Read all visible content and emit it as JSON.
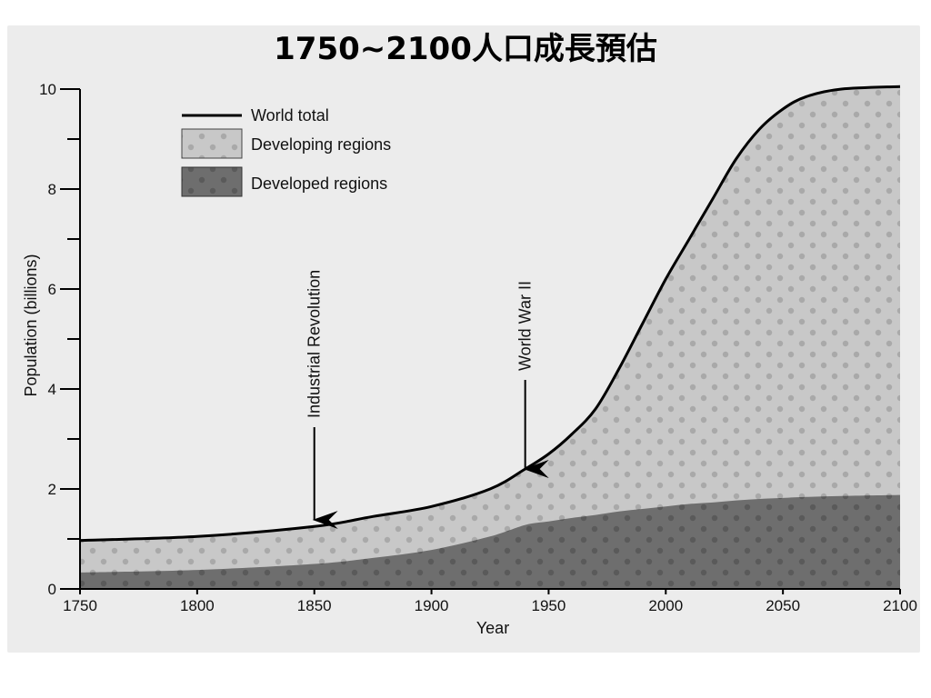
{
  "slide": {
    "title": "1750~2100人口成長預估"
  },
  "chart_data": {
    "type": "area",
    "x": [
      1750,
      1800,
      1850,
      1875,
      1900,
      1925,
      1940,
      1950,
      1960,
      1970,
      1980,
      1990,
      2000,
      2010,
      2020,
      2030,
      2040,
      2050,
      2060,
      2075,
      2100
    ],
    "series": [
      {
        "name": "World total",
        "values": [
          0.97,
          1.05,
          1.25,
          1.45,
          1.65,
          2.0,
          2.4,
          2.7,
          3.1,
          3.6,
          4.4,
          5.3,
          6.2,
          7.0,
          7.8,
          8.6,
          9.2,
          9.6,
          9.85,
          10.0,
          10.05
        ]
      },
      {
        "name": "Developing regions",
        "values": [
          0.97,
          1.05,
          1.25,
          1.45,
          1.65,
          2.0,
          2.4,
          2.7,
          3.1,
          3.6,
          4.4,
          5.3,
          6.2,
          7.0,
          7.8,
          8.6,
          9.2,
          9.6,
          9.85,
          10.0,
          10.05
        ]
      },
      {
        "name": "Developed regions",
        "values": [
          0.33,
          0.38,
          0.5,
          0.62,
          0.78,
          1.05,
          1.28,
          1.35,
          1.42,
          1.48,
          1.55,
          1.6,
          1.65,
          1.7,
          1.73,
          1.77,
          1.8,
          1.82,
          1.84,
          1.86,
          1.88
        ]
      }
    ],
    "title": "",
    "xlabel": "Year",
    "ylabel": "Population (billions)",
    "xlim": [
      1750,
      2100
    ],
    "ylim": [
      0,
      10
    ],
    "xticks": [
      "1750",
      "1800",
      "1850",
      "1900",
      "1950",
      "2000",
      "2050",
      "2100"
    ],
    "yticks": [
      "0",
      "2",
      "4",
      "6",
      "8",
      "10"
    ],
    "grid": false,
    "legend_position": "top-left",
    "annotations": [
      {
        "label": "Industrial Revolution",
        "x": 1850
      },
      {
        "label": "World War II",
        "x": 1940
      }
    ],
    "colors": {
      "world_total_line": "#000000",
      "developing_fill": "#c8c8c8",
      "developed_fill": "#6e6e6e",
      "dot_light": "#a9a9a9",
      "dot_dark": "#5a5a5a"
    }
  }
}
